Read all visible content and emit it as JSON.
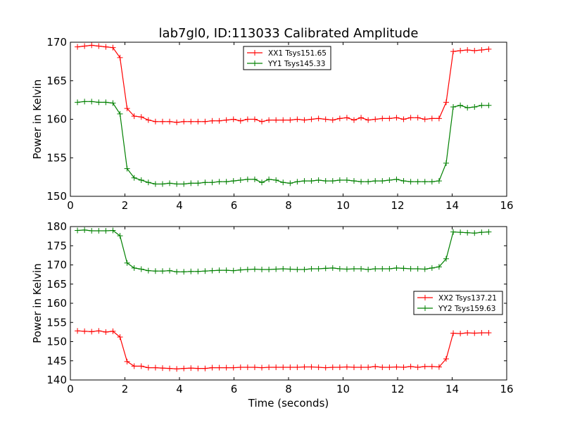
{
  "title": "lab7gl0, ID:113033 Calibrated Amplitude",
  "colors": {
    "xx": "#ff0000",
    "yy": "#008000",
    "axes": "#000000"
  },
  "chart_data": [
    {
      "type": "line",
      "title": "lab7gl0, ID:113033 Calibrated Amplitude",
      "xlabel": "",
      "ylabel": "Power in Kelvin",
      "xlim": [
        0,
        16
      ],
      "ylim": [
        150,
        170
      ],
      "xticks": [
        "0",
        "2",
        "4",
        "6",
        "8",
        "10",
        "12",
        "14",
        "16"
      ],
      "yticks": [
        "150",
        "155",
        "160",
        "165",
        "170"
      ],
      "legend": "top-center",
      "grid": false,
      "x": [
        0.26,
        0.52,
        0.78,
        1.04,
        1.3,
        1.56,
        1.82,
        2.08,
        2.34,
        2.6,
        2.86,
        3.12,
        3.38,
        3.64,
        3.9,
        4.16,
        4.42,
        4.68,
        4.94,
        5.2,
        5.46,
        5.72,
        5.98,
        6.24,
        6.5,
        6.76,
        7.02,
        7.28,
        7.54,
        7.8,
        8.06,
        8.32,
        8.58,
        8.84,
        9.1,
        9.36,
        9.62,
        9.88,
        10.14,
        10.4,
        10.66,
        10.92,
        11.18,
        11.44,
        11.7,
        11.96,
        12.22,
        12.48,
        12.74,
        13.0,
        13.26,
        13.52,
        13.78,
        14.04,
        14.3,
        14.56,
        14.82,
        15.08,
        15.34
      ],
      "series": [
        {
          "name": "XX1 Tsys151.65",
          "color": "#ff0000",
          "values": [
            169.4,
            169.5,
            169.6,
            169.5,
            169.4,
            169.3,
            168.0,
            161.4,
            160.4,
            160.3,
            159.9,
            159.7,
            159.7,
            159.7,
            159.6,
            159.7,
            159.7,
            159.7,
            159.7,
            159.8,
            159.8,
            159.9,
            160.0,
            159.8,
            160.0,
            160.0,
            159.7,
            159.9,
            159.9,
            159.9,
            159.9,
            160.0,
            159.9,
            160.0,
            160.1,
            160.0,
            159.9,
            160.1,
            160.2,
            159.9,
            160.2,
            159.9,
            160.0,
            160.1,
            160.1,
            160.2,
            160.0,
            160.2,
            160.2,
            160.0,
            160.1,
            160.1,
            162.2,
            168.8,
            168.9,
            169.0,
            168.9,
            169.0,
            169.1
          ]
        },
        {
          "name": "YY1 Tsys145.33",
          "color": "#008000",
          "values": [
            162.2,
            162.3,
            162.3,
            162.2,
            162.2,
            162.1,
            160.7,
            153.6,
            152.4,
            152.1,
            151.8,
            151.6,
            151.6,
            151.7,
            151.6,
            151.6,
            151.7,
            151.7,
            151.8,
            151.8,
            151.9,
            151.9,
            152.0,
            152.1,
            152.2,
            152.2,
            151.8,
            152.2,
            152.1,
            151.8,
            151.7,
            151.9,
            152.0,
            152.0,
            152.1,
            152.0,
            152.0,
            152.1,
            152.1,
            152.0,
            151.9,
            151.9,
            152.0,
            152.0,
            152.1,
            152.2,
            152.0,
            151.9,
            151.9,
            151.9,
            151.9,
            152.0,
            154.3,
            161.6,
            161.8,
            161.5,
            161.6,
            161.8,
            161.8
          ]
        }
      ]
    },
    {
      "type": "line",
      "title": "",
      "xlabel": "Time (seconds)",
      "ylabel": "Power in Kelvin",
      "xlim": [
        0,
        16
      ],
      "ylim": [
        140,
        180
      ],
      "xticks": [
        "0",
        "2",
        "4",
        "6",
        "8",
        "10",
        "12",
        "14",
        "16"
      ],
      "yticks": [
        "140",
        "145",
        "150",
        "155",
        "160",
        "165",
        "170",
        "175",
        "180"
      ],
      "legend": "center-right",
      "grid": false,
      "x": [
        0.26,
        0.52,
        0.78,
        1.04,
        1.3,
        1.56,
        1.82,
        2.08,
        2.34,
        2.6,
        2.86,
        3.12,
        3.38,
        3.64,
        3.9,
        4.16,
        4.42,
        4.68,
        4.94,
        5.2,
        5.46,
        5.72,
        5.98,
        6.24,
        6.5,
        6.76,
        7.02,
        7.28,
        7.54,
        7.8,
        8.06,
        8.32,
        8.58,
        8.84,
        9.1,
        9.36,
        9.62,
        9.88,
        10.14,
        10.4,
        10.66,
        10.92,
        11.18,
        11.44,
        11.7,
        11.96,
        12.22,
        12.48,
        12.74,
        13.0,
        13.26,
        13.52,
        13.78,
        14.04,
        14.3,
        14.56,
        14.82,
        15.08,
        15.34
      ],
      "series": [
        {
          "name": "XX2 Tsys137.21",
          "color": "#ff0000",
          "values": [
            152.8,
            152.7,
            152.6,
            152.8,
            152.5,
            152.7,
            151.2,
            144.8,
            143.6,
            143.6,
            143.2,
            143.2,
            143.1,
            143.0,
            142.9,
            143.0,
            143.1,
            143.0,
            143.0,
            143.2,
            143.2,
            143.2,
            143.2,
            143.3,
            143.3,
            143.3,
            143.2,
            143.3,
            143.3,
            143.3,
            143.3,
            143.3,
            143.4,
            143.4,
            143.3,
            143.2,
            143.3,
            143.3,
            143.4,
            143.3,
            143.3,
            143.3,
            143.5,
            143.3,
            143.3,
            143.4,
            143.3,
            143.5,
            143.3,
            143.5,
            143.5,
            143.4,
            145.5,
            152.2,
            152.1,
            152.3,
            152.2,
            152.3,
            152.3
          ]
        },
        {
          "name": "YY2 Tsys159.63",
          "color": "#008000",
          "values": [
            179.0,
            179.1,
            178.9,
            178.9,
            178.9,
            179.0,
            177.6,
            170.5,
            169.2,
            168.9,
            168.5,
            168.4,
            168.4,
            168.5,
            168.2,
            168.2,
            168.3,
            168.3,
            168.4,
            168.5,
            168.6,
            168.6,
            168.5,
            168.7,
            168.8,
            168.9,
            168.8,
            168.8,
            168.9,
            169.0,
            168.9,
            168.8,
            168.8,
            169.0,
            169.0,
            169.1,
            169.2,
            169.0,
            168.9,
            169.0,
            169.0,
            168.8,
            169.0,
            169.0,
            169.0,
            169.2,
            169.1,
            169.0,
            169.0,
            168.9,
            169.2,
            169.5,
            171.6,
            178.6,
            178.5,
            178.4,
            178.3,
            178.5,
            178.6
          ]
        }
      ]
    }
  ]
}
